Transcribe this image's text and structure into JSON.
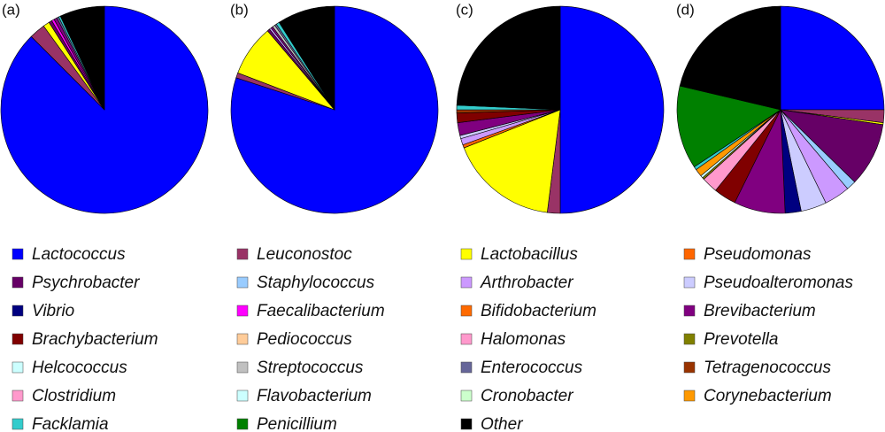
{
  "chart_data": [
    {
      "type": "pie",
      "title": "(a)",
      "values": [
        87.5,
        2.5,
        1,
        0,
        0.5,
        0,
        0,
        0,
        0,
        0.4,
        0,
        0.5,
        0,
        0,
        0,
        0,
        0,
        0,
        0.3,
        0,
        0,
        0,
        0,
        0,
        0.3,
        0,
        7
      ]
    },
    {
      "type": "pie",
      "title": "(b)",
      "values": [
        80,
        0.8,
        8,
        0,
        0.4,
        0,
        0.3,
        0,
        0,
        0,
        0,
        0.3,
        0,
        0,
        0,
        0,
        0,
        0.4,
        0.3,
        0,
        0,
        0,
        0,
        0,
        0.5,
        0,
        9
      ]
    },
    {
      "type": "pie",
      "title": "(c)",
      "values": [
        50,
        2,
        17,
        0.5,
        0,
        0,
        1,
        0.5,
        0,
        0,
        0,
        2,
        1.5,
        0,
        0,
        0,
        0,
        0,
        0,
        0.5,
        0,
        0,
        0,
        0,
        0.7,
        0,
        24.3
      ]
    },
    {
      "type": "pie",
      "title": "(d)",
      "values": [
        25,
        2,
        0.3,
        0,
        10,
        1.5,
        4,
        4,
        2.5,
        0,
        0,
        8,
        3.5,
        0,
        2.5,
        0.3,
        0,
        0,
        0,
        0,
        0,
        0.4,
        0,
        1.2,
        0.5,
        13,
        21.3
      ]
    }
  ],
  "legend": {
    "categories": [
      "Lactococcus",
      "Leuconostoc",
      "Lactobacillus",
      "Pseudomonas",
      "Psychrobacter",
      "Staphylococcus",
      "Arthrobacter",
      "Pseudoalteromonas",
      "Vibrio",
      "Faecalibacterium",
      "Bifidobacterium",
      "Brevibacterium",
      "Brachybacterium",
      "Pediococcus",
      "Halomonas",
      "Prevotella",
      "Helcococcus",
      "Streptococcus",
      "Enterococcus",
      "Tetragenococcus",
      "Clostridium",
      "Flavobacterium",
      "Cronobacter",
      "Corynebacterium",
      "Facklamia",
      "Penicillium",
      "Other"
    ],
    "colors": [
      "#0000ff",
      "#993366",
      "#ffff00",
      "#ff6600",
      "#660066",
      "#99ccff",
      "#cc99ff",
      "#ccccff",
      "#000080",
      "#ff00ff",
      "#ff6a00",
      "#800080",
      "#800000",
      "#ffcc99",
      "#ff99cc",
      "#808000",
      "#ccffff",
      "#c0c0c0",
      "#666699",
      "#993300",
      "#ff99cc",
      "#ccffff",
      "#ccffcc",
      "#ff9900",
      "#33cccc",
      "#008000",
      "#000000"
    ]
  }
}
